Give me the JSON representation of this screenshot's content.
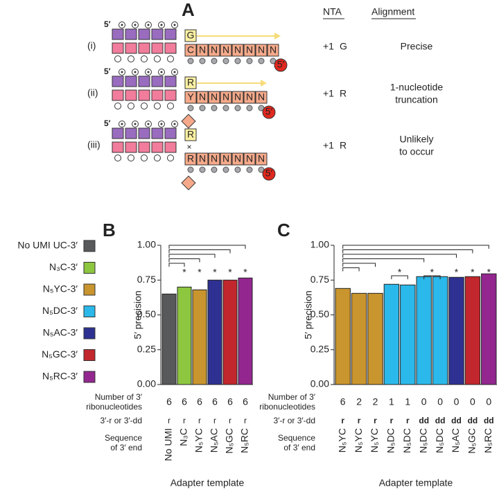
{
  "diagram": {
    "label": "A",
    "headers": [
      "NTA",
      "Alignment"
    ],
    "rows": [
      {
        "label": "(i)",
        "five_prime": "5′",
        "added": "G",
        "template": [
          "C",
          "N",
          "N",
          "N",
          "N",
          "N",
          "N",
          "N"
        ],
        "template_end": "5′",
        "nta": [
          "+1",
          "G"
        ],
        "alignment": [
          "Precise"
        ]
      },
      {
        "label": "(ii)",
        "five_prime": "5′",
        "added": "R",
        "template": [
          "Y",
          "N",
          "N",
          "N",
          "N",
          "N",
          "N"
        ],
        "template_end": "5′",
        "nta": [
          "+1",
          "R"
        ],
        "alignment": [
          "1-nucleotide",
          "truncation"
        ]
      },
      {
        "label": "(iii)",
        "five_prime": "5′",
        "added": "R",
        "template": [
          "R",
          "N",
          "N",
          "N",
          "N",
          "N",
          "N"
        ],
        "template_end": "5′",
        "nta": [
          "+1",
          "R"
        ],
        "alignment": [
          "Unlikely",
          "to occur"
        ]
      }
    ]
  },
  "legend": [
    {
      "name": "No UMI UC-3′",
      "color": "#58595b"
    },
    {
      "name": "N₃C-3′",
      "color": "#8dc63f"
    },
    {
      "name": "N₅YC-3′",
      "color": "#c9952e"
    },
    {
      "name": "N₅DC-3′",
      "color": "#2bb8ea"
    },
    {
      "name": "N₅AC-3′",
      "color": "#2e3192"
    },
    {
      "name": "N₅GC-3′",
      "color": "#c1272d"
    },
    {
      "name": "N₅RC-3′",
      "color": "#93278f"
    }
  ],
  "chart_data": [
    {
      "type": "bar",
      "panel": "B",
      "y_label": "5′ precision",
      "x_label": "Adapter template",
      "categories": [
        "No UMI",
        "N₃C",
        "N₅YC",
        "N₅AC",
        "N₅GC",
        "N₅RC"
      ],
      "values": [
        0.65,
        0.7,
        0.68,
        0.75,
        0.75,
        0.765
      ],
      "colors": [
        "#58595b",
        "#8dc63f",
        "#c9952e",
        "#2e3192",
        "#c1272d",
        "#93278f"
      ],
      "significance_labels": [
        null,
        "*",
        "*",
        "*",
        "*",
        "*"
      ],
      "row_labels": [
        [
          "Number of 3′",
          "ribonucleotides"
        ],
        [
          "3′-r or 3′-dd"
        ],
        [
          "Sequence",
          "of 3′ end"
        ]
      ],
      "ribonucleotides": [
        6,
        6,
        6,
        6,
        6,
        6
      ],
      "ends": [
        "r",
        "r",
        "r",
        "r",
        "r",
        "r"
      ],
      "ylim": [
        0,
        1
      ],
      "yticks": [
        {
          "value": 0,
          "label": "0.00"
        },
        {
          "value": 0.25,
          "label": "0.25"
        },
        {
          "value": 0.5,
          "label": "0.50"
        },
        {
          "value": 0.75,
          "label": "0.75"
        },
        {
          "value": 1,
          "label": "1.00"
        }
      ]
    },
    {
      "type": "bar",
      "panel": "C",
      "y_label": "5′ precision",
      "x_label": "Adapter template",
      "categories": [
        "N₅YC",
        "N₅YC",
        "N₅YC",
        "N₅DC",
        "N₅DC",
        "N₅DC",
        "N₅DC",
        "N₅AC",
        "N₅GC",
        "N₅RC"
      ],
      "values": [
        0.69,
        0.655,
        0.655,
        0.72,
        0.715,
        0.775,
        0.775,
        0.77,
        0.775,
        0.795
      ],
      "colors": [
        "#c9952e",
        "#c9952e",
        "#c9952e",
        "#2bb8ea",
        "#2bb8ea",
        "#2bb8ea",
        "#2bb8ea",
        "#2e3192",
        "#c1272d",
        "#93278f"
      ],
      "significance_labels": [
        null,
        null,
        null,
        null,
        "*",
        null,
        "*",
        "*",
        "*",
        "*"
      ],
      "row_labels": [
        [
          "Number of 3′",
          "ribonucleotides"
        ],
        [
          "3′-r or 3′-dd"
        ],
        [
          "Sequence",
          "of 3′ end"
        ]
      ],
      "ribonucleotides": [
        6,
        2,
        2,
        1,
        1,
        0,
        0,
        0,
        0,
        0
      ],
      "ends": [
        "r",
        "r",
        "r",
        "r",
        "r",
        "dd",
        "dd",
        "dd",
        "dd",
        "dd"
      ],
      "ylim": [
        0,
        1
      ],
      "yticks": [
        {
          "value": 0,
          "label": "0.00"
        },
        {
          "value": 0.25,
          "label": "0.25"
        },
        {
          "value": 0.5,
          "label": "0.50"
        },
        {
          "value": 0.75,
          "label": "0.75"
        },
        {
          "value": 1,
          "label": "1.00"
        }
      ]
    }
  ]
}
